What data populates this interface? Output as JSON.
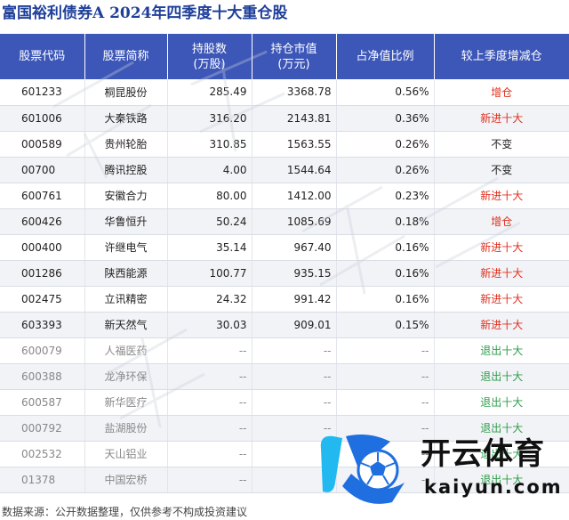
{
  "title": "富国裕利债券A  2024年四季度十大重仓股",
  "table": {
    "headers": [
      {
        "line1": "股票代码",
        "line2": ""
      },
      {
        "line1": "股票简称",
        "line2": ""
      },
      {
        "line1": "持股数",
        "line2": "(万股)"
      },
      {
        "line1": "持仓市值",
        "line2": "(万元)"
      },
      {
        "line1": "占净值比例",
        "line2": ""
      },
      {
        "line1": "较上季度增减仓",
        "line2": ""
      }
    ],
    "rows": [
      {
        "code": "601233",
        "name": "桐昆股份",
        "shares": "285.49",
        "value": "3368.78",
        "ratio": "0.56%",
        "change": "增仓",
        "kind": "add"
      },
      {
        "code": "601006",
        "name": "大秦铁路",
        "shares": "316.20",
        "value": "2143.81",
        "ratio": "0.36%",
        "change": "新进十大",
        "kind": "new"
      },
      {
        "code": "000589",
        "name": "贵州轮胎",
        "shares": "310.85",
        "value": "1563.55",
        "ratio": "0.26%",
        "change": "不变",
        "kind": "same"
      },
      {
        "code": "00700",
        "name": "腾讯控股",
        "shares": "4.00",
        "value": "1544.64",
        "ratio": "0.26%",
        "change": "不变",
        "kind": "same"
      },
      {
        "code": "600761",
        "name": "安徽合力",
        "shares": "80.00",
        "value": "1412.00",
        "ratio": "0.23%",
        "change": "新进十大",
        "kind": "new"
      },
      {
        "code": "600426",
        "name": "华鲁恒升",
        "shares": "50.24",
        "value": "1085.69",
        "ratio": "0.18%",
        "change": "增仓",
        "kind": "add"
      },
      {
        "code": "000400",
        "name": "许继电气",
        "shares": "35.14",
        "value": "967.40",
        "ratio": "0.16%",
        "change": "新进十大",
        "kind": "new"
      },
      {
        "code": "001286",
        "name": "陕西能源",
        "shares": "100.77",
        "value": "935.15",
        "ratio": "0.16%",
        "change": "新进十大",
        "kind": "new"
      },
      {
        "code": "002475",
        "name": "立讯精密",
        "shares": "24.32",
        "value": "991.42",
        "ratio": "0.16%",
        "change": "新进十大",
        "kind": "new"
      },
      {
        "code": "603393",
        "name": "新天然气",
        "shares": "30.03",
        "value": "909.01",
        "ratio": "0.15%",
        "change": "新进十大",
        "kind": "new"
      },
      {
        "code": "600079",
        "name": "人福医药",
        "shares": "--",
        "value": "--",
        "ratio": "--",
        "change": "退出十大",
        "kind": "out"
      },
      {
        "code": "600388",
        "name": "龙净环保",
        "shares": "--",
        "value": "--",
        "ratio": "--",
        "change": "退出十大",
        "kind": "out"
      },
      {
        "code": "600587",
        "name": "新华医疗",
        "shares": "--",
        "value": "--",
        "ratio": "--",
        "change": "退出十大",
        "kind": "out"
      },
      {
        "code": "000792",
        "name": "盐湖股份",
        "shares": "--",
        "value": "--",
        "ratio": "--",
        "change": "退出十大",
        "kind": "out"
      },
      {
        "code": "002532",
        "name": "天山铝业",
        "shares": "--",
        "value": "--",
        "ratio": "--",
        "change": "退出十大",
        "kind": "out"
      },
      {
        "code": "01378",
        "name": "中国宏桥",
        "shares": "--",
        "value": "--",
        "ratio": "--",
        "change": "退出十大",
        "kind": "out"
      }
    ]
  },
  "footer": "数据来源：公开数据整理，仅供参考不构成投资建议",
  "brand": {
    "chinese": "开云体育",
    "english": "kaiyun.com",
    "colors": {
      "k_blue": "#1f6fe0",
      "k_cyan": "#22b8f0"
    }
  },
  "colors": {
    "title": "#1f3f9a",
    "header_bg": "#3d57b8",
    "change_up": "#e0301e",
    "change_out": "#2e9e4a"
  }
}
